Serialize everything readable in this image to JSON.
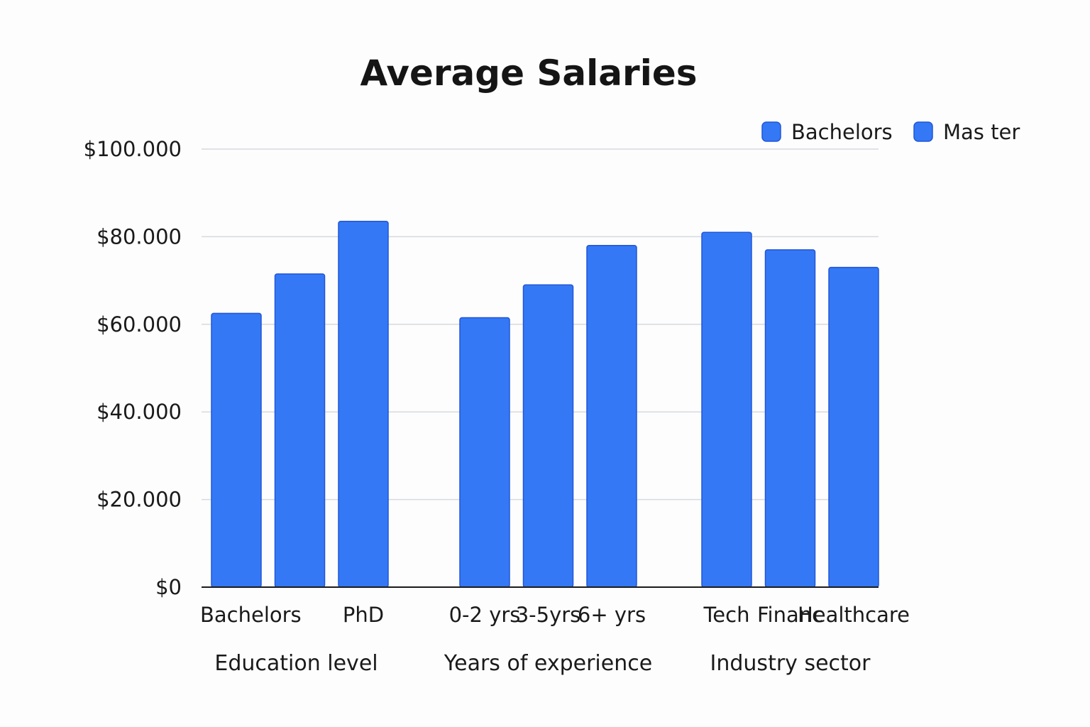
{
  "chart_data": {
    "type": "bar",
    "title": "Average Salaries",
    "xlabel": "",
    "ylabel": "",
    "ylim": [
      0,
      100000
    ],
    "y_ticks": [
      "$0",
      "$20.000",
      "$40.000",
      "$60.000",
      "$80.000",
      "$100.000"
    ],
    "y_tick_values": [
      0,
      20000,
      40000,
      60000,
      80000,
      100000
    ],
    "grid": true,
    "legend_position": "top-right",
    "legend": [
      {
        "label": "Bachelors",
        "color": "#3478f6"
      },
      {
        "label": "Mas ter",
        "color": "#3478f6"
      }
    ],
    "groups": [
      {
        "label": "Education level",
        "categories": [
          "Bachelors",
          "",
          "PhD"
        ],
        "values": [
          62500,
          71500,
          83500
        ]
      },
      {
        "label": "Years of experience",
        "categories": [
          "0-2 yrs",
          "3-5yrs",
          "6+ yrs"
        ],
        "values": [
          61500,
          69000,
          78000
        ]
      },
      {
        "label": "Industry sector",
        "categories": [
          "Tech",
          "Financ",
          "Healthcare"
        ],
        "values": [
          81000,
          77000,
          73000
        ]
      }
    ],
    "bar_color": "#3478f6"
  }
}
